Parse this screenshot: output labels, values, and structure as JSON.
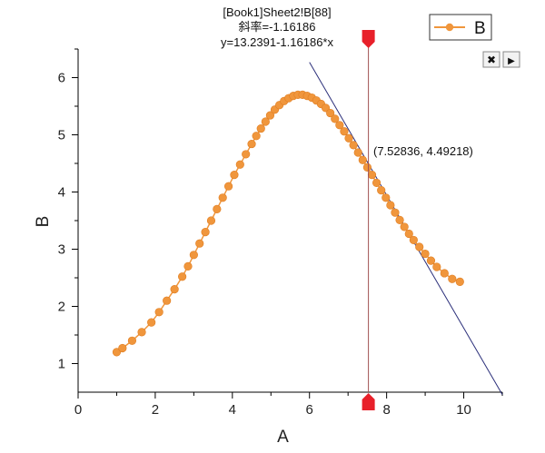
{
  "chart_data": {
    "type": "scatter",
    "title": "",
    "xlabel": "A",
    "ylabel": "B",
    "xlim": [
      0,
      11
    ],
    "ylim": [
      0.5,
      6.5
    ],
    "xticks": [
      0,
      2,
      4,
      6,
      8,
      10
    ],
    "yticks": [
      1,
      2,
      3,
      4,
      5,
      6
    ],
    "grid": false,
    "legend": {
      "position": "top-right",
      "entries": [
        "B"
      ]
    },
    "series": [
      {
        "name": "B",
        "color": "#F0963C",
        "x": [
          1.0,
          1.15,
          1.4,
          1.65,
          1.9,
          2.1,
          2.3,
          2.5,
          2.7,
          2.85,
          3.0,
          3.15,
          3.3,
          3.45,
          3.6,
          3.75,
          3.9,
          4.05,
          4.2,
          4.35,
          4.5,
          4.62,
          4.74,
          4.86,
          4.98,
          5.1,
          5.22,
          5.34,
          5.46,
          5.58,
          5.7,
          5.82,
          5.94,
          6.06,
          6.18,
          6.3,
          6.42,
          6.54,
          6.66,
          6.78,
          6.9,
          7.02,
          7.14,
          7.26,
          7.38,
          7.5,
          7.62,
          7.74,
          7.86,
          7.98,
          8.1,
          8.22,
          8.34,
          8.46,
          8.58,
          8.7,
          8.85,
          9.0,
          9.15,
          9.3,
          9.5,
          9.7,
          9.9
        ],
        "y": [
          1.2,
          1.27,
          1.4,
          1.55,
          1.72,
          1.9,
          2.1,
          2.3,
          2.52,
          2.7,
          2.9,
          3.1,
          3.3,
          3.5,
          3.7,
          3.9,
          4.1,
          4.3,
          4.48,
          4.66,
          4.84,
          4.98,
          5.11,
          5.23,
          5.34,
          5.44,
          5.52,
          5.59,
          5.64,
          5.68,
          5.7,
          5.7,
          5.68,
          5.65,
          5.6,
          5.54,
          5.47,
          5.38,
          5.28,
          5.17,
          5.06,
          4.94,
          4.82,
          4.69,
          4.56,
          4.43,
          4.3,
          4.16,
          4.03,
          3.9,
          3.77,
          3.64,
          3.51,
          3.39,
          3.27,
          3.16,
          3.04,
          2.92,
          2.8,
          2.69,
          2.58,
          2.48,
          2.43
        ]
      }
    ],
    "tangent": {
      "label_lines": [
        "[Book1]Sheet2!B[88]",
        "斜率=-1.16186",
        "y=13.2391-1.16186*x"
      ],
      "intercept": 13.2391,
      "slope": -1.16186,
      "x_start": 6.0,
      "x_end": 11.0
    },
    "cursor": {
      "x": 7.52836,
      "y": 4.49218,
      "readout": "(7.52836, 4.49218)",
      "line_color": "#A05050",
      "marker_color": "#E8202A"
    }
  },
  "controls": {
    "close_symbol": "✖",
    "next_symbol": "▶"
  }
}
